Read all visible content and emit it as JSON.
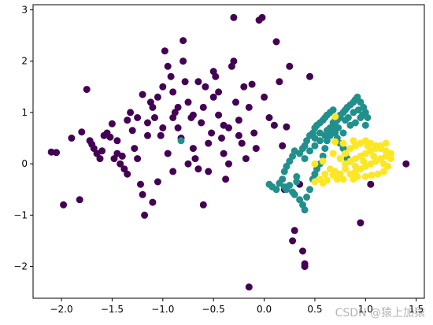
{
  "watermark": "CSDN @猿上加猿",
  "chart_data": {
    "type": "scatter",
    "title": "",
    "xlabel": "",
    "ylabel": "",
    "xlim": [
      -2.28,
      1.58
    ],
    "ylim": [
      -2.62,
      3.1
    ],
    "xticks": [
      -2.0,
      -1.5,
      -1.0,
      -0.5,
      0.0,
      0.5,
      1.0,
      1.5
    ],
    "xtick_labels": [
      "−2.0",
      "−1.5",
      "−1.0",
      "−0.5",
      "0.0",
      "0.5",
      "1.0",
      "1.5"
    ],
    "yticks": [
      -2,
      -1,
      0,
      1,
      2,
      3
    ],
    "ytick_labels": [
      "−2",
      "−1",
      "0",
      "1",
      "2",
      "3"
    ],
    "grid": false,
    "legend": "none",
    "series": [
      {
        "color": "#440154",
        "points": [
          [
            -2.1,
            0.23
          ],
          [
            -2.05,
            0.22
          ],
          [
            -1.98,
            -0.8
          ],
          [
            -1.9,
            0.5
          ],
          [
            -1.82,
            -0.7
          ],
          [
            -1.8,
            0.62
          ],
          [
            -1.75,
            1.45
          ],
          [
            -1.72,
            0.45
          ],
          [
            -1.7,
            0.38
          ],
          [
            -1.68,
            0.3
          ],
          [
            -1.65,
            0.2
          ],
          [
            -1.62,
            0.1
          ],
          [
            -1.6,
            0.25
          ],
          [
            -1.58,
            0.55
          ],
          [
            -1.55,
            0.6
          ],
          [
            -1.52,
            0.52
          ],
          [
            -1.5,
            0.78
          ],
          [
            -1.48,
            0.1
          ],
          [
            -1.45,
            0.2
          ],
          [
            -1.42,
            0.0
          ],
          [
            -1.4,
            0.15
          ],
          [
            -1.38,
            -0.1
          ],
          [
            -1.35,
            0.85
          ],
          [
            -1.32,
            1.0
          ],
          [
            -1.3,
            0.65
          ],
          [
            -1.28,
            0.3
          ],
          [
            -1.25,
            0.1
          ],
          [
            -1.22,
            -0.4
          ],
          [
            -1.2,
            -0.6
          ],
          [
            -1.18,
            -1.0
          ],
          [
            -1.15,
            0.8
          ],
          [
            -1.12,
            1.2
          ],
          [
            -1.1,
            1.1
          ],
          [
            -1.08,
            0.9
          ],
          [
            -1.05,
            1.3
          ],
          [
            -1.02,
            0.55
          ],
          [
            -1.0,
            1.5
          ],
          [
            -0.98,
            2.2
          ],
          [
            -0.95,
            1.9
          ],
          [
            -0.92,
            1.7
          ],
          [
            -0.9,
            1.4
          ],
          [
            -0.88,
            1.0
          ],
          [
            -0.85,
            0.7
          ],
          [
            -0.82,
            0.5
          ],
          [
            -0.8,
            2.4
          ],
          [
            -0.78,
            1.6
          ],
          [
            -0.75,
            1.2
          ],
          [
            -0.72,
            0.9
          ],
          [
            -0.7,
            0.3
          ],
          [
            -0.68,
            0.1
          ],
          [
            -0.65,
            -0.1
          ],
          [
            -0.62,
            0.8
          ],
          [
            -0.6,
            1.1
          ],
          [
            -0.58,
            1.5
          ],
          [
            -0.55,
            0.4
          ],
          [
            -0.52,
            0.6
          ],
          [
            -0.5,
            1.3
          ],
          [
            -0.48,
            1.7
          ],
          [
            -0.45,
            0.95
          ],
          [
            -0.42,
            0.5
          ],
          [
            -0.4,
            0.2
          ],
          [
            -0.38,
            -0.3
          ],
          [
            -0.35,
            0.7
          ],
          [
            -0.32,
            1.9
          ],
          [
            -0.3,
            2.85
          ],
          [
            -0.28,
            1.2
          ],
          [
            -0.25,
            0.85
          ],
          [
            -0.22,
            0.4
          ],
          [
            -0.2,
            1.5
          ],
          [
            -0.18,
            0.1
          ],
          [
            -0.15,
            1.1
          ],
          [
            -0.12,
            1.55
          ],
          [
            -0.1,
            0.6
          ],
          [
            -0.08,
            0.3
          ],
          [
            -0.05,
            2.8
          ],
          [
            -0.02,
            2.85
          ],
          [
            0.0,
            1.3
          ],
          [
            0.05,
            0.9
          ],
          [
            0.1,
            0.75
          ],
          [
            0.12,
            2.38
          ],
          [
            0.15,
            1.6
          ],
          [
            0.18,
            0.35
          ],
          [
            0.2,
            -0.5
          ],
          [
            0.25,
            1.9
          ],
          [
            0.28,
            -1.5
          ],
          [
            0.3,
            -1.3
          ],
          [
            0.35,
            -0.4
          ],
          [
            0.38,
            -1.7
          ],
          [
            0.4,
            -2.0
          ],
          [
            0.45,
            1.7
          ],
          [
            -1.35,
            -0.2
          ],
          [
            -1.25,
            0.9
          ],
          [
            -1.15,
            0.55
          ],
          [
            -1.05,
            -0.35
          ],
          [
            -0.95,
            0.2
          ],
          [
            -0.85,
            1.1
          ],
          [
            -0.75,
            0.0
          ],
          [
            -0.65,
            1.6
          ],
          [
            -0.55,
            -0.15
          ],
          [
            -0.45,
            1.4
          ],
          [
            -0.35,
            0.0
          ],
          [
            -0.25,
            0.55
          ],
          [
            -0.15,
            -2.4
          ],
          [
            -0.6,
            -0.8
          ],
          [
            -0.9,
            -0.15
          ],
          [
            -1.1,
            -0.75
          ],
          [
            -1.45,
            0.45
          ],
          [
            -1.0,
            0.7
          ],
          [
            -0.7,
            0.95
          ],
          [
            -0.4,
            0.75
          ],
          [
            -1.2,
            1.35
          ],
          [
            -0.5,
            1.8
          ],
          [
            -0.8,
            2.0
          ],
          [
            -0.3,
            2.0
          ],
          [
            0.95,
            -1.15
          ],
          [
            1.05,
            -0.4
          ],
          [
            1.4,
            0.0
          ],
          [
            0.22,
            0.72
          ],
          [
            0.4,
            -1.95
          ],
          [
            -0.9,
            0.9
          ]
        ]
      },
      {
        "color": "#21908d",
        "points": [
          [
            -0.82,
            0.45
          ],
          [
            0.05,
            -0.4
          ],
          [
            0.08,
            -0.45
          ],
          [
            0.12,
            -0.5
          ],
          [
            0.15,
            -0.38
          ],
          [
            0.18,
            -0.3
          ],
          [
            0.2,
            -0.45
          ],
          [
            0.22,
            -0.5
          ],
          [
            0.25,
            -0.42
          ],
          [
            0.28,
            -0.55
          ],
          [
            0.3,
            -0.6
          ],
          [
            0.32,
            -0.35
          ],
          [
            0.35,
            -0.7
          ],
          [
            0.38,
            -0.8
          ],
          [
            0.4,
            -0.9
          ],
          [
            0.42,
            -0.65
          ],
          [
            0.45,
            -0.5
          ],
          [
            0.48,
            -0.3
          ],
          [
            0.5,
            -0.2
          ],
          [
            0.52,
            -0.1
          ],
          [
            0.55,
            0.0
          ],
          [
            0.58,
            0.15
          ],
          [
            0.6,
            0.3
          ],
          [
            0.62,
            0.45
          ],
          [
            0.65,
            0.55
          ],
          [
            0.68,
            0.65
          ],
          [
            0.7,
            0.75
          ],
          [
            0.72,
            0.85
          ],
          [
            0.75,
            0.9
          ],
          [
            0.78,
            1.0
          ],
          [
            0.8,
            1.05
          ],
          [
            0.82,
            1.1
          ],
          [
            0.85,
            1.15
          ],
          [
            0.88,
            1.2
          ],
          [
            0.9,
            1.25
          ],
          [
            0.92,
            1.3
          ],
          [
            0.95,
            1.2
          ],
          [
            0.98,
            1.1
          ],
          [
            1.0,
            1.0
          ],
          [
            1.02,
            0.9
          ],
          [
            0.35,
            0.2
          ],
          [
            0.38,
            0.3
          ],
          [
            0.4,
            0.35
          ],
          [
            0.42,
            0.45
          ],
          [
            0.45,
            0.55
          ],
          [
            0.48,
            0.6
          ],
          [
            0.5,
            0.7
          ],
          [
            0.52,
            0.75
          ],
          [
            0.55,
            0.8
          ],
          [
            0.58,
            0.85
          ],
          [
            0.6,
            0.9
          ],
          [
            0.62,
            0.95
          ],
          [
            0.65,
            1.0
          ],
          [
            0.68,
            1.05
          ],
          [
            0.7,
            0.6
          ],
          [
            0.72,
            0.5
          ],
          [
            0.75,
            0.4
          ],
          [
            0.78,
            0.3
          ],
          [
            0.8,
            0.2
          ],
          [
            0.82,
            0.1
          ],
          [
            0.85,
            0.05
          ],
          [
            0.4,
            0.1
          ],
          [
            0.45,
            0.25
          ],
          [
            0.5,
            0.35
          ],
          [
            0.55,
            0.45
          ],
          [
            0.6,
            0.55
          ],
          [
            0.65,
            0.7
          ],
          [
            0.7,
            0.85
          ],
          [
            0.75,
            0.95
          ],
          [
            0.8,
            0.85
          ],
          [
            0.85,
            0.75
          ],
          [
            0.9,
            0.8
          ],
          [
            0.95,
            0.9
          ],
          [
            1.0,
            0.75
          ],
          [
            0.3,
            0.25
          ],
          [
            0.28,
            0.15
          ],
          [
            0.25,
            0.05
          ],
          [
            0.22,
            -0.05
          ],
          [
            0.2,
            -0.15
          ],
          [
            0.32,
            -0.25
          ],
          [
            0.5,
            0.5
          ],
          [
            0.55,
            0.6
          ],
          [
            0.62,
            0.65
          ],
          [
            0.68,
            0.8
          ],
          [
            0.73,
            0.7
          ],
          [
            0.78,
            0.6
          ],
          [
            0.83,
            0.9
          ],
          [
            0.88,
            1.0
          ],
          [
            0.93,
            1.05
          ],
          [
            0.97,
            0.95
          ]
        ]
      },
      {
        "color": "#fde725",
        "points": [
          [
            0.7,
            0.92
          ],
          [
            0.7,
            0.43
          ],
          [
            0.55,
            -0.3
          ],
          [
            0.6,
            -0.2
          ],
          [
            0.65,
            -0.1
          ],
          [
            0.7,
            -0.15
          ],
          [
            0.75,
            -0.2
          ],
          [
            0.8,
            -0.1
          ],
          [
            0.85,
            -0.2
          ],
          [
            0.9,
            -0.15
          ],
          [
            0.95,
            -0.1
          ],
          [
            1.0,
            -0.05
          ],
          [
            1.05,
            0.0
          ],
          [
            1.1,
            0.05
          ],
          [
            1.15,
            0.1
          ],
          [
            1.2,
            0.15
          ],
          [
            1.25,
            0.2
          ],
          [
            0.8,
            0.0
          ],
          [
            0.85,
            0.05
          ],
          [
            0.9,
            0.1
          ],
          [
            0.95,
            0.15
          ],
          [
            1.0,
            0.2
          ],
          [
            1.05,
            0.25
          ],
          [
            1.1,
            0.3
          ],
          [
            1.15,
            0.35
          ],
          [
            1.2,
            0.4
          ],
          [
            0.75,
            0.1
          ],
          [
            0.8,
            0.2
          ],
          [
            0.85,
            0.3
          ],
          [
            0.9,
            0.35
          ],
          [
            0.95,
            0.4
          ],
          [
            1.0,
            0.45
          ],
          [
            1.05,
            0.4
          ],
          [
            1.1,
            0.35
          ],
          [
            1.15,
            0.3
          ],
          [
            1.2,
            0.25
          ],
          [
            1.25,
            0.1
          ],
          [
            1.22,
            -0.05
          ],
          [
            1.18,
            -0.15
          ],
          [
            1.12,
            -0.2
          ],
          [
            1.06,
            -0.22
          ],
          [
            1.0,
            -0.25
          ],
          [
            0.92,
            -0.25
          ],
          [
            0.88,
            -0.3
          ],
          [
            0.78,
            -0.3
          ],
          [
            0.72,
            -0.3
          ],
          [
            0.68,
            -0.22
          ],
          [
            0.62,
            -0.32
          ],
          [
            0.58,
            -0.38
          ],
          [
            0.5,
            -0.35
          ],
          [
            0.5,
            0.0
          ],
          [
            0.58,
            0.05
          ],
          [
            0.68,
            0.2
          ],
          [
            0.78,
            0.4
          ],
          [
            0.88,
            0.45
          ],
          [
            0.98,
            0.05
          ],
          [
            1.08,
            0.15
          ],
          [
            1.18,
            0.0
          ],
          [
            0.9,
            -0.05
          ],
          [
            1.02,
            0.35
          ]
        ]
      }
    ]
  }
}
